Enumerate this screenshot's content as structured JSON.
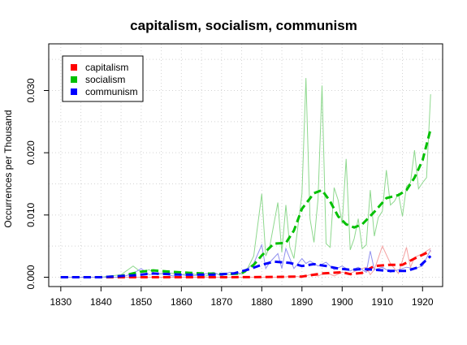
{
  "chart_data": {
    "type": "line",
    "title": "capitalism, socialism, communism",
    "ylabel": "Occurrences per Thousand",
    "xlabel": "",
    "xlim": [
      1827,
      1925
    ],
    "ylim": [
      -0.0015,
      0.0375
    ],
    "x_ticks": [
      1830,
      1840,
      1850,
      1860,
      1870,
      1880,
      1890,
      1900,
      1910,
      1920
    ],
    "y_ticks": [
      0.0,
      0.01,
      0.02,
      0.03
    ],
    "y_tick_labels": [
      "0.000",
      "0.010",
      "0.020",
      "0.030"
    ],
    "grid": true,
    "legend_position": "top-left",
    "series": [
      {
        "name": "capitalism",
        "color": "#ff0000",
        "raw_color": "#f4a0a0",
        "raw": [
          [
            1830,
            0
          ],
          [
            1835,
            0
          ],
          [
            1840,
            0
          ],
          [
            1845,
            0
          ],
          [
            1850,
            0
          ],
          [
            1855,
            0
          ],
          [
            1860,
            0
          ],
          [
            1865,
            0
          ],
          [
            1870,
            0
          ],
          [
            1875,
            0
          ],
          [
            1880,
            0
          ],
          [
            1885,
            0
          ],
          [
            1888,
            0.0002
          ],
          [
            1890,
            0
          ],
          [
            1892,
            0.0004
          ],
          [
            1894,
            0.0002
          ],
          [
            1896,
            0.0008
          ],
          [
            1898,
            0.0002
          ],
          [
            1900,
            0.0008
          ],
          [
            1902,
            0.0006
          ],
          [
            1904,
            0.0012
          ],
          [
            1906,
            0.0016
          ],
          [
            1907,
            0.0004
          ],
          [
            1908,
            0.0012
          ],
          [
            1910,
            0.005
          ],
          [
            1912,
            0.0022
          ],
          [
            1914,
            0.0006
          ],
          [
            1916,
            0.0048
          ],
          [
            1917,
            0.0016
          ],
          [
            1918,
            0.0032
          ],
          [
            1920,
            0.0038
          ],
          [
            1922,
            0.0046
          ]
        ],
        "smoothed": [
          [
            1830,
            0
          ],
          [
            1840,
            0
          ],
          [
            1850,
            0
          ],
          [
            1860,
            0
          ],
          [
            1870,
            0
          ],
          [
            1880,
            3e-05
          ],
          [
            1890,
            0.0001
          ],
          [
            1895,
            0.0006
          ],
          [
            1900,
            0.0008
          ],
          [
            1902,
            0.0005
          ],
          [
            1905,
            0.0007
          ],
          [
            1908,
            0.0018
          ],
          [
            1912,
            0.002
          ],
          [
            1915,
            0.002
          ],
          [
            1918,
            0.003
          ],
          [
            1922,
            0.0042
          ]
        ]
      },
      {
        "name": "socialism",
        "color": "#00c000",
        "raw_color": "#8ed88e",
        "raw": [
          [
            1830,
            0
          ],
          [
            1835,
            0
          ],
          [
            1840,
            0
          ],
          [
            1845,
            0.0004
          ],
          [
            1848,
            0.0018
          ],
          [
            1850,
            0.0008
          ],
          [
            1852,
            0.0012
          ],
          [
            1854,
            0.0004
          ],
          [
            1856,
            0.0008
          ],
          [
            1858,
            0.0006
          ],
          [
            1860,
            0.0004
          ],
          [
            1862,
            0.0006
          ],
          [
            1864,
            0.0004
          ],
          [
            1866,
            0.0002
          ],
          [
            1868,
            0.0006
          ],
          [
            1870,
            0.0004
          ],
          [
            1872,
            0.0004
          ],
          [
            1874,
            0.0004
          ],
          [
            1876,
            0.0008
          ],
          [
            1878,
            0.0034
          ],
          [
            1880,
            0.0134
          ],
          [
            1881,
            0.0034
          ],
          [
            1882,
            0.005
          ],
          [
            1884,
            0.012
          ],
          [
            1885,
            0.004
          ],
          [
            1886,
            0.0116
          ],
          [
            1887,
            0.0048
          ],
          [
            1888,
            0.003
          ],
          [
            1890,
            0.0134
          ],
          [
            1891,
            0.032
          ],
          [
            1892,
            0.0094
          ],
          [
            1893,
            0.0056
          ],
          [
            1894,
            0.0126
          ],
          [
            1895,
            0.0308
          ],
          [
            1896,
            0.0054
          ],
          [
            1897,
            0.0048
          ],
          [
            1898,
            0.0144
          ],
          [
            1899,
            0.0124
          ],
          [
            1900,
            0.0086
          ],
          [
            1901,
            0.019
          ],
          [
            1902,
            0.0044
          ],
          [
            1903,
            0.0062
          ],
          [
            1904,
            0.0094
          ],
          [
            1905,
            0.0046
          ],
          [
            1906,
            0.0052
          ],
          [
            1907,
            0.014
          ],
          [
            1908,
            0.0066
          ],
          [
            1909,
            0.0096
          ],
          [
            1910,
            0.0106
          ],
          [
            1911,
            0.0172
          ],
          [
            1912,
            0.0116
          ],
          [
            1913,
            0.0122
          ],
          [
            1914,
            0.0134
          ],
          [
            1915,
            0.0098
          ],
          [
            1916,
            0.0146
          ],
          [
            1917,
            0.0152
          ],
          [
            1918,
            0.0204
          ],
          [
            1919,
            0.0142
          ],
          [
            1920,
            0.0152
          ],
          [
            1921,
            0.016
          ],
          [
            1922,
            0.0294
          ]
        ],
        "smoothed": [
          [
            1830,
            0
          ],
          [
            1840,
            0
          ],
          [
            1845,
            0.0002
          ],
          [
            1850,
            0.0009
          ],
          [
            1853,
            0.0011
          ],
          [
            1857,
            0.0009
          ],
          [
            1862,
            0.0007
          ],
          [
            1870,
            0.0005
          ],
          [
            1875,
            0.0006
          ],
          [
            1878,
            0.002
          ],
          [
            1880,
            0.0035
          ],
          [
            1883,
            0.0054
          ],
          [
            1886,
            0.0055
          ],
          [
            1888,
            0.0075
          ],
          [
            1890,
            0.011
          ],
          [
            1893,
            0.0135
          ],
          [
            1895,
            0.014
          ],
          [
            1897,
            0.0122
          ],
          [
            1899,
            0.0098
          ],
          [
            1901,
            0.0085
          ],
          [
            1903,
            0.008
          ],
          [
            1905,
            0.0085
          ],
          [
            1908,
            0.0105
          ],
          [
            1911,
            0.0127
          ],
          [
            1914,
            0.0132
          ],
          [
            1916,
            0.014
          ],
          [
            1918,
            0.016
          ],
          [
            1920,
            0.0188
          ],
          [
            1922,
            0.0238
          ]
        ]
      },
      {
        "name": "communism",
        "color": "#0000ff",
        "raw_color": "#9090ee",
        "raw": [
          [
            1830,
            0
          ],
          [
            1835,
            0
          ],
          [
            1840,
            0
          ],
          [
            1845,
            0
          ],
          [
            1848,
            0.0006
          ],
          [
            1850,
            0.0014
          ],
          [
            1852,
            0.0004
          ],
          [
            1855,
            0.0006
          ],
          [
            1858,
            0.0002
          ],
          [
            1860,
            0.0004
          ],
          [
            1862,
            0.0002
          ],
          [
            1865,
            0.0004
          ],
          [
            1868,
            0.0008
          ],
          [
            1870,
            0.0002
          ],
          [
            1872,
            0.0008
          ],
          [
            1875,
            0.0006
          ],
          [
            1878,
            0.0022
          ],
          [
            1880,
            0.0052
          ],
          [
            1881,
            0.0014
          ],
          [
            1882,
            0.0024
          ],
          [
            1884,
            0.0038
          ],
          [
            1885,
            0.0014
          ],
          [
            1886,
            0.0046
          ],
          [
            1888,
            0.0014
          ],
          [
            1890,
            0.003
          ],
          [
            1891,
            0.0022
          ],
          [
            1892,
            0.0026
          ],
          [
            1894,
            0.0018
          ],
          [
            1896,
            0.0024
          ],
          [
            1898,
            0.0012
          ],
          [
            1900,
            0.0018
          ],
          [
            1902,
            0.001
          ],
          [
            1904,
            0.0016
          ],
          [
            1906,
            0.0008
          ],
          [
            1907,
            0.0042
          ],
          [
            1908,
            0.0012
          ],
          [
            1910,
            0.0016
          ],
          [
            1912,
            0.0008
          ],
          [
            1914,
            0.0012
          ],
          [
            1916,
            0.0016
          ],
          [
            1918,
            0.0014
          ],
          [
            1920,
            0.0018
          ],
          [
            1922,
            0.0044
          ]
        ],
        "smoothed": [
          [
            1830,
            0
          ],
          [
            1840,
            0
          ],
          [
            1848,
            0.0003
          ],
          [
            1853,
            0.0006
          ],
          [
            1860,
            0.0004
          ],
          [
            1868,
            0.0004
          ],
          [
            1873,
            0.0006
          ],
          [
            1877,
            0.0013
          ],
          [
            1880,
            0.002
          ],
          [
            1883,
            0.0025
          ],
          [
            1887,
            0.0023
          ],
          [
            1890,
            0.0018
          ],
          [
            1893,
            0.0021
          ],
          [
            1896,
            0.0018
          ],
          [
            1899,
            0.0014
          ],
          [
            1902,
            0.0012
          ],
          [
            1905,
            0.0013
          ],
          [
            1908,
            0.0012
          ],
          [
            1912,
            0.001
          ],
          [
            1916,
            0.001
          ],
          [
            1919,
            0.0016
          ],
          [
            1922,
            0.0034
          ]
        ]
      }
    ]
  }
}
